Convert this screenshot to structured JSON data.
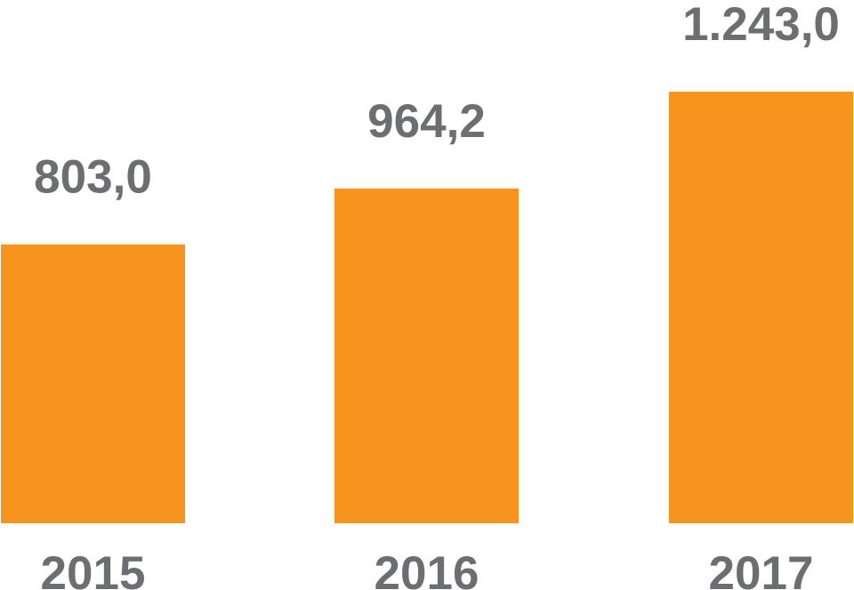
{
  "colors": {
    "bar": "#F7941E",
    "text": "#6D6E71",
    "background": "#FFFFFF"
  },
  "chart_data": {
    "type": "bar",
    "title": "",
    "xlabel": "",
    "ylabel": "",
    "categories": [
      "2015",
      "2016",
      "2017"
    ],
    "values": [
      803.0,
      964.2,
      1243.0
    ],
    "value_labels": [
      "803,0",
      "964,2",
      "1.243,0"
    ],
    "ylim": [
      0,
      1243.0
    ],
    "grid": false,
    "legend": "none"
  }
}
